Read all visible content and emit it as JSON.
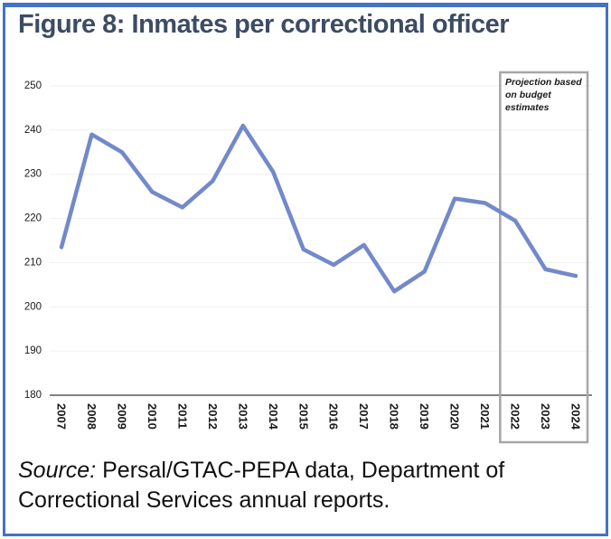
{
  "figure": {
    "title": "Figure 8: Inmates per correctional officer",
    "source_label": "Source:",
    "source_text": " Persal/GTAC-PEPA data, Department of Correctional Services annual reports."
  },
  "colors": {
    "frame_border": "#4472C4",
    "title_text": "#3D4C63",
    "line": "#7389C9",
    "gridline": "#F0F0F0",
    "axis_line": "#595959",
    "tick_text": "#1a1a1a",
    "projection_box_border": "#A6A6A6"
  },
  "chart_data": {
    "type": "line",
    "title": "Figure 8: Inmates per correctional officer",
    "x": [
      2007,
      2008,
      2009,
      2010,
      2011,
      2012,
      2013,
      2014,
      2015,
      2016,
      2017,
      2018,
      2019,
      2020,
      2021,
      2022,
      2023,
      2024
    ],
    "series": [
      {
        "name": "Inmates per correctional officer",
        "values": [
          213.5,
          239,
          235,
          226,
          222.5,
          228.5,
          241,
          230.5,
          213,
          209.5,
          214,
          203.5,
          208,
          224.5,
          223.5,
          219.5,
          208.5,
          207
        ]
      }
    ],
    "xlabel": "",
    "ylabel": "",
    "ylim": [
      180,
      250
    ],
    "ytick_step": 10,
    "grid": true,
    "legend": false,
    "annotation": {
      "text": "Projection based on budget estimates",
      "box_x_range": [
        2022,
        2024
      ],
      "box_style": "gray outlined rectangle spanning projected years"
    }
  }
}
